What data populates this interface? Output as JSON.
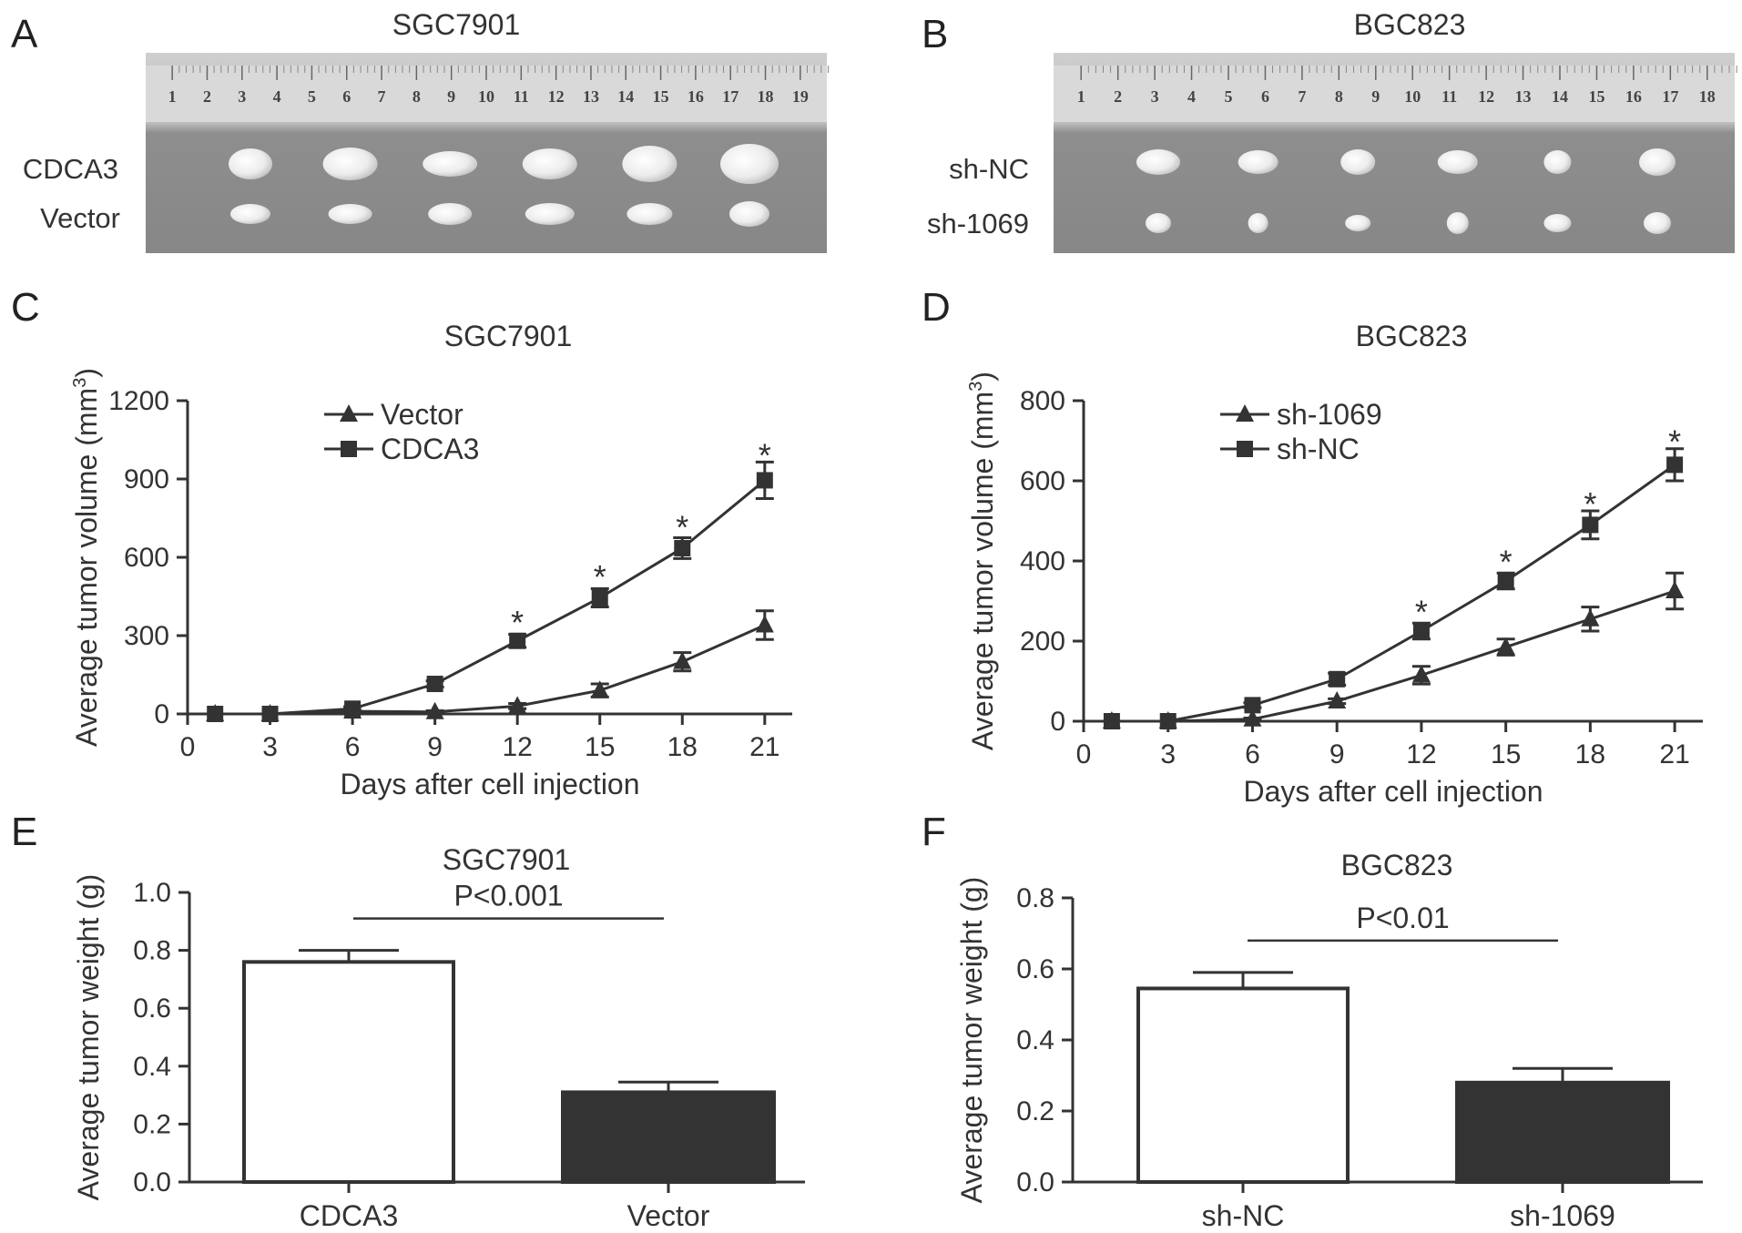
{
  "panel_letters": [
    "A",
    "B",
    "C",
    "D",
    "E",
    "F"
  ],
  "photos": [
    {
      "letter": "A",
      "title": "SGC7901",
      "ruler_numbers": [
        "1",
        "2",
        "3",
        "4",
        "5",
        "6",
        "7",
        "8",
        "9",
        "10",
        "11",
        "12",
        "13",
        "14",
        "15",
        "16",
        "17",
        "18",
        "19"
      ],
      "row_labels": [
        "CDCA3",
        "Vector"
      ]
    },
    {
      "letter": "B",
      "title": "BGC823",
      "ruler_numbers": [
        "1",
        "2",
        "3",
        "4",
        "5",
        "6",
        "7",
        "8",
        "9",
        "10",
        "11",
        "12",
        "13",
        "14",
        "15",
        "16",
        "17",
        "18"
      ],
      "row_labels": [
        "sh-NC",
        "sh-1069"
      ]
    }
  ],
  "chart_data": [
    {
      "panel": "C",
      "type": "line",
      "title": "SGC7901",
      "xlabel": "Days after cell injection",
      "ylabel": "Average tumor volume (mm",
      "ylabel_sup": "3",
      "ylabel_close": ")",
      "xticks": [
        0,
        3,
        6,
        9,
        12,
        15,
        18,
        21
      ],
      "xlim": [
        0,
        22
      ],
      "yticks": [
        0,
        300,
        600,
        900,
        1200
      ],
      "ylim": [
        0,
        1200
      ],
      "x": [
        1,
        3,
        6,
        9,
        12,
        15,
        18,
        21
      ],
      "series": [
        {
          "name": "Vector",
          "marker": "triangle",
          "values": [
            0,
            0,
            10,
            8,
            30,
            90,
            200,
            340
          ],
          "errors": [
            0,
            0,
            4,
            4,
            10,
            25,
            35,
            55
          ]
        },
        {
          "name": "CDCA3",
          "marker": "square",
          "values": [
            0,
            0,
            20,
            115,
            280,
            445,
            635,
            895
          ],
          "errors": [
            0,
            0,
            8,
            12,
            25,
            35,
            40,
            70
          ]
        }
      ],
      "annotations": [
        {
          "x": 12,
          "y": 370,
          "text": "*"
        },
        {
          "x": 15,
          "y": 545,
          "text": "*"
        },
        {
          "x": 18,
          "y": 735,
          "text": "*"
        },
        {
          "x": 21,
          "y": 1010,
          "text": "*"
        }
      ],
      "legend": "top-left"
    },
    {
      "panel": "D",
      "type": "line",
      "title": "BGC823",
      "xlabel": "Days after cell injection",
      "ylabel": "Average tumor volume (mm",
      "ylabel_sup": "3",
      "ylabel_close": ")",
      "xticks": [
        0,
        3,
        6,
        9,
        12,
        15,
        18,
        21
      ],
      "xlim": [
        0,
        22
      ],
      "yticks": [
        0,
        200,
        400,
        600,
        800
      ],
      "ylim": [
        0,
        800
      ],
      "x": [
        1,
        3,
        6,
        9,
        12,
        15,
        18,
        21
      ],
      "series": [
        {
          "name": "sh-1069",
          "marker": "triangle",
          "values": [
            0,
            0,
            5,
            50,
            115,
            185,
            255,
            325
          ],
          "errors": [
            0,
            0,
            3,
            6,
            22,
            20,
            30,
            45
          ]
        },
        {
          "name": "sh-NC",
          "marker": "square",
          "values": [
            0,
            0,
            40,
            105,
            225,
            350,
            490,
            640
          ],
          "errors": [
            0,
            0,
            6,
            15,
            20,
            20,
            35,
            40
          ]
        }
      ],
      "annotations": [
        {
          "x": 12,
          "y": 285,
          "text": "*"
        },
        {
          "x": 15,
          "y": 410,
          "text": "*"
        },
        {
          "x": 18,
          "y": 555,
          "text": "*"
        },
        {
          "x": 21,
          "y": 710,
          "text": "*"
        }
      ],
      "legend": "top-left"
    },
    {
      "panel": "E",
      "type": "bar",
      "title": "SGC7901",
      "ylabel": "Average tumor weight (g)",
      "yticks": [
        "0.0",
        "0.2",
        "0.4",
        "0.6",
        "0.8",
        "1.0"
      ],
      "ylim": [
        0,
        1.0
      ],
      "categories": [
        "CDCA3",
        "Vector"
      ],
      "values": [
        0.76,
        0.31
      ],
      "errors": [
        0.04,
        0.035
      ],
      "colors": [
        "#ffffff",
        "#333333"
      ],
      "annotation": "P<0.001"
    },
    {
      "panel": "F",
      "type": "bar",
      "title": "BGC823",
      "ylabel": "Average tumor weight (g)",
      "yticks": [
        "0.0",
        "0.2",
        "0.4",
        "0.6",
        "0.8"
      ],
      "ylim": [
        0,
        0.8
      ],
      "categories": [
        "sh-NC",
        "sh-1069"
      ],
      "values": [
        0.545,
        0.28
      ],
      "errors": [
        0.045,
        0.04
      ],
      "colors": [
        "#ffffff",
        "#333333"
      ],
      "annotation": "P<0.01"
    }
  ]
}
